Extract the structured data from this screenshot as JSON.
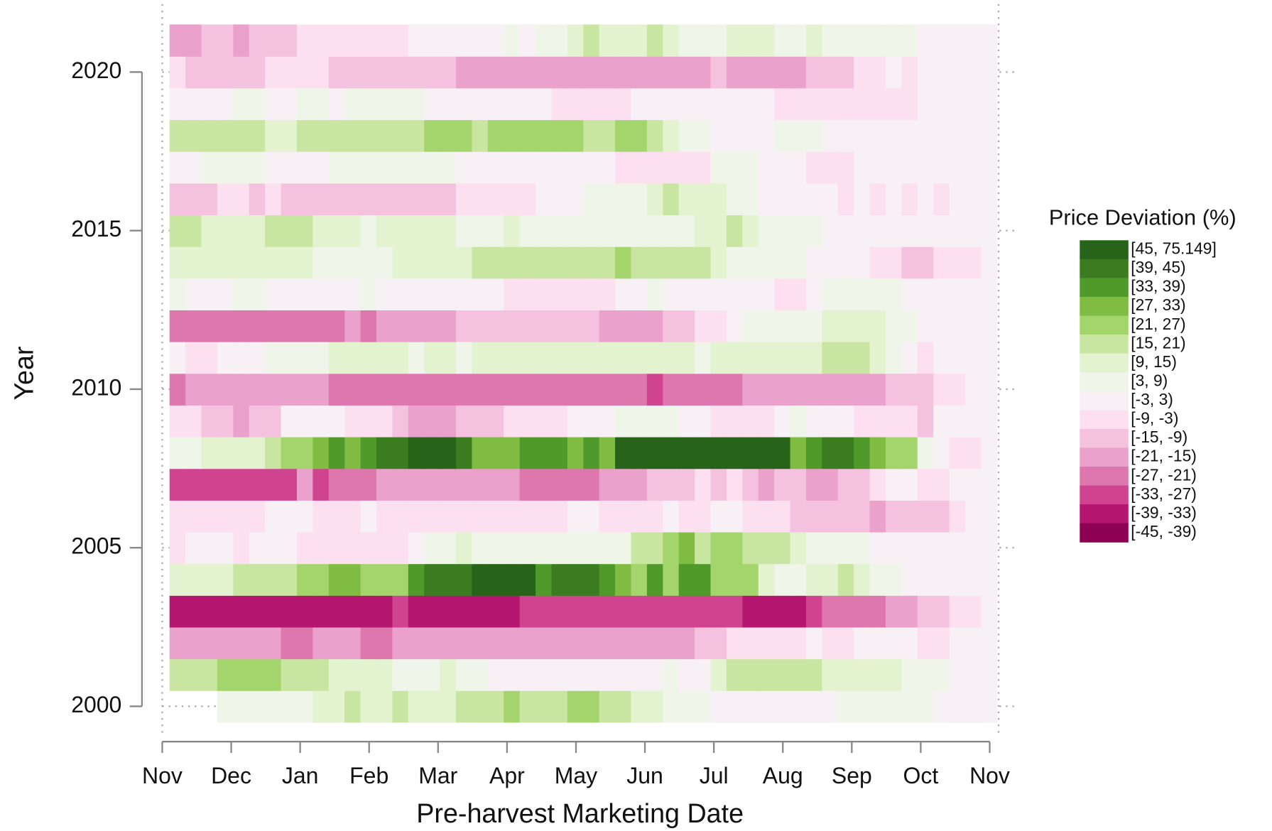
{
  "chart_data": {
    "type": "heatmap",
    "xlabel": "Pre-harvest Marketing Date",
    "ylabel": "Year",
    "xlim": [
      0,
      12
    ],
    "xticks": [
      {
        "value": 0,
        "label": "Nov"
      },
      {
        "value": 1,
        "label": "Dec"
      },
      {
        "value": 2,
        "label": "Jan"
      },
      {
        "value": 3,
        "label": "Feb"
      },
      {
        "value": 4,
        "label": "Mar"
      },
      {
        "value": 5,
        "label": "Apr"
      },
      {
        "value": 6,
        "label": "May"
      },
      {
        "value": 7,
        "label": "Jun"
      },
      {
        "value": 8,
        "label": "Jul"
      },
      {
        "value": 9,
        "label": "Aug"
      },
      {
        "value": 10,
        "label": "Sep"
      },
      {
        "value": 11,
        "label": "Oct"
      },
      {
        "value": 12,
        "label": "Nov"
      }
    ],
    "ylim": [
      1999.5,
      2021.5
    ],
    "yticks": [
      2000,
      2005,
      2010,
      2015,
      2020
    ],
    "grid": true,
    "y": [
      2000,
      2001,
      2002,
      2003,
      2004,
      2005,
      2006,
      2007,
      2008,
      2009,
      2010,
      2011,
      2012,
      2013,
      2014,
      2015,
      2016,
      2017,
      2018,
      2019,
      2020,
      2021
    ],
    "z": [
      [
        null,
        null,
        null,
        6,
        6,
        6,
        6,
        6,
        6,
        12,
        12,
        18,
        12,
        12,
        18,
        12,
        12,
        12,
        18,
        18,
        18,
        24,
        18,
        18,
        18,
        24,
        24,
        18,
        18,
        12,
        12,
        6,
        6,
        6,
        0,
        0,
        0,
        0,
        0,
        0,
        0,
        0,
        6,
        6,
        6,
        6,
        6,
        6,
        0,
        0,
        0,
        0
      ],
      [
        18,
        18,
        18,
        24,
        24,
        24,
        24,
        18,
        18,
        18,
        12,
        12,
        12,
        12,
        6,
        6,
        6,
        12,
        6,
        6,
        0,
        0,
        0,
        0,
        0,
        0,
        0,
        0,
        0,
        0,
        0,
        6,
        0,
        0,
        12,
        18,
        18,
        18,
        18,
        18,
        18,
        12,
        12,
        12,
        12,
        12,
        6,
        6,
        6,
        0,
        0,
        0
      ],
      [
        -18,
        -18,
        -18,
        -18,
        -18,
        -18,
        -18,
        -24,
        -24,
        -18,
        -18,
        -18,
        -24,
        -24,
        -18,
        -18,
        -18,
        -18,
        -18,
        -18,
        -18,
        -18,
        -18,
        -18,
        -18,
        -18,
        -18,
        -18,
        -18,
        -18,
        -18,
        -18,
        -18,
        -12,
        -12,
        -6,
        -6,
        -6,
        -6,
        -6,
        0,
        -6,
        -6,
        0,
        0,
        0,
        0,
        -6,
        -6,
        0,
        0,
        0
      ],
      [
        -36,
        -36,
        -36,
        -36,
        -36,
        -36,
        -36,
        -36,
        -36,
        -36,
        -36,
        -36,
        -36,
        -36,
        -30,
        -36,
        -36,
        -36,
        -36,
        -36,
        -36,
        -36,
        -30,
        -30,
        -30,
        -30,
        -30,
        -30,
        -30,
        -30,
        -30,
        -30,
        -30,
        -30,
        -30,
        -30,
        -36,
        -36,
        -36,
        -36,
        -30,
        -24,
        -24,
        -24,
        -24,
        -18,
        -18,
        -12,
        -12,
        -6,
        -6,
        0
      ],
      [
        12,
        12,
        12,
        12,
        18,
        18,
        18,
        18,
        24,
        24,
        30,
        30,
        24,
        24,
        24,
        36,
        42,
        42,
        42,
        50,
        50,
        50,
        50,
        36,
        42,
        42,
        42,
        36,
        30,
        24,
        36,
        24,
        36,
        36,
        24,
        24,
        24,
        12,
        6,
        6,
        12,
        12,
        18,
        12,
        6,
        6,
        0,
        0,
        0,
        0,
        0,
        0
      ],
      [
        -6,
        0,
        0,
        0,
        -6,
        0,
        0,
        0,
        -6,
        -6,
        -6,
        -6,
        -6,
        -6,
        -6,
        0,
        6,
        6,
        12,
        6,
        6,
        6,
        6,
        6,
        6,
        6,
        6,
        6,
        6,
        18,
        18,
        24,
        30,
        18,
        24,
        24,
        18,
        18,
        18,
        12,
        6,
        6,
        6,
        6,
        0,
        0,
        0,
        0,
        0,
        0,
        0,
        0
      ],
      [
        -6,
        -6,
        -6,
        -6,
        -6,
        -6,
        0,
        0,
        0,
        -6,
        -6,
        -6,
        0,
        -6,
        -6,
        -6,
        -6,
        -6,
        -6,
        -6,
        -6,
        -6,
        -6,
        -6,
        -6,
        0,
        0,
        -6,
        -6,
        -6,
        -6,
        0,
        -6,
        -6,
        0,
        0,
        -6,
        -6,
        -6,
        -12,
        -12,
        -12,
        -12,
        -12,
        -18,
        -12,
        -12,
        -12,
        -12,
        -6,
        0,
        0
      ],
      [
        -30,
        -30,
        -30,
        -30,
        -30,
        -30,
        -30,
        -30,
        -18,
        -30,
        -24,
        -24,
        -24,
        -18,
        -18,
        -18,
        -18,
        -18,
        -18,
        -18,
        -18,
        -18,
        -24,
        -24,
        -24,
        -24,
        -24,
        -18,
        -18,
        -18,
        -12,
        -12,
        -12,
        -6,
        -12,
        -6,
        -12,
        -18,
        -12,
        -12,
        -18,
        -18,
        -12,
        -12,
        -6,
        0,
        0,
        -6,
        -6,
        0,
        0,
        0
      ],
      [
        6,
        6,
        12,
        12,
        12,
        12,
        18,
        24,
        24,
        30,
        36,
        30,
        36,
        42,
        42,
        50,
        50,
        50,
        42,
        30,
        30,
        30,
        36,
        36,
        36,
        30,
        36,
        30,
        50,
        50,
        50,
        50,
        50,
        50,
        50,
        50,
        50,
        50,
        50,
        30,
        36,
        42,
        42,
        36,
        30,
        24,
        24,
        6,
        0,
        -6,
        -6,
        0
      ],
      [
        -6,
        -6,
        -12,
        -12,
        -18,
        -12,
        -12,
        0,
        0,
        0,
        0,
        -6,
        -6,
        -6,
        -12,
        -18,
        -18,
        -18,
        -12,
        -12,
        -12,
        -6,
        -6,
        -6,
        -6,
        0,
        0,
        0,
        6,
        6,
        6,
        6,
        0,
        0,
        -6,
        -6,
        -6,
        -6,
        0,
        6,
        0,
        0,
        0,
        -6,
        -6,
        -6,
        -6,
        -12,
        0,
        0,
        0,
        0
      ],
      [
        -24,
        -18,
        -18,
        -18,
        -18,
        -18,
        -18,
        -18,
        -18,
        -18,
        -24,
        -24,
        -24,
        -24,
        -24,
        -24,
        -24,
        -24,
        -24,
        -24,
        -24,
        -24,
        -24,
        -24,
        -24,
        -24,
        -24,
        -24,
        -24,
        -24,
        -30,
        -24,
        -24,
        -24,
        -24,
        -24,
        -18,
        -18,
        -18,
        -18,
        -18,
        -18,
        -18,
        -18,
        -18,
        -12,
        -12,
        -12,
        -6,
        -6,
        0,
        0
      ],
      [
        0,
        -6,
        -6,
        0,
        0,
        0,
        6,
        6,
        6,
        6,
        12,
        12,
        12,
        12,
        12,
        6,
        12,
        12,
        6,
        12,
        12,
        12,
        12,
        12,
        12,
        12,
        12,
        12,
        12,
        12,
        12,
        12,
        12,
        6,
        12,
        12,
        12,
        12,
        12,
        12,
        12,
        18,
        18,
        18,
        12,
        6,
        0,
        -6,
        0,
        0,
        0,
        0
      ],
      [
        -24,
        -24,
        -24,
        -24,
        -24,
        -24,
        -24,
        -24,
        -24,
        -24,
        -24,
        -18,
        -24,
        -18,
        -18,
        -18,
        -18,
        -18,
        -12,
        -12,
        -12,
        -12,
        -12,
        -12,
        -12,
        -12,
        -12,
        -18,
        -18,
        -18,
        -18,
        -12,
        -12,
        -6,
        -6,
        0,
        6,
        6,
        6,
        6,
        6,
        12,
        12,
        12,
        12,
        6,
        6,
        0,
        0,
        0,
        0,
        0
      ],
      [
        6,
        0,
        0,
        0,
        6,
        6,
        0,
        0,
        0,
        0,
        0,
        0,
        6,
        0,
        0,
        0,
        0,
        0,
        0,
        0,
        0,
        -6,
        -6,
        -6,
        -6,
        -6,
        -6,
        -6,
        0,
        0,
        6,
        0,
        0,
        0,
        0,
        0,
        0,
        0,
        -6,
        -6,
        0,
        6,
        6,
        6,
        6,
        6,
        0,
        0,
        0,
        0,
        0,
        0
      ],
      [
        12,
        12,
        12,
        12,
        12,
        12,
        12,
        12,
        12,
        6,
        6,
        6,
        6,
        6,
        12,
        12,
        12,
        12,
        12,
        18,
        18,
        18,
        18,
        18,
        18,
        18,
        18,
        18,
        24,
        18,
        18,
        18,
        18,
        18,
        12,
        6,
        6,
        6,
        6,
        6,
        0,
        0,
        0,
        0,
        -6,
        -6,
        -12,
        -12,
        -6,
        -6,
        -6,
        0
      ],
      [
        18,
        18,
        12,
        12,
        12,
        12,
        18,
        18,
        18,
        12,
        12,
        12,
        6,
        12,
        12,
        12,
        12,
        12,
        6,
        6,
        6,
        12,
        6,
        6,
        6,
        6,
        6,
        6,
        6,
        6,
        6,
        6,
        6,
        12,
        12,
        18,
        12,
        6,
        6,
        6,
        6,
        0,
        0,
        0,
        0,
        0,
        0,
        0,
        0,
        0,
        0,
        0
      ],
      [
        -12,
        -12,
        -12,
        -6,
        -6,
        -12,
        -6,
        -12,
        -12,
        -12,
        -12,
        -12,
        -12,
        -12,
        -12,
        -12,
        -12,
        -12,
        -6,
        -6,
        -6,
        -6,
        -6,
        0,
        0,
        0,
        6,
        6,
        6,
        6,
        12,
        18,
        12,
        12,
        12,
        6,
        6,
        0,
        0,
        0,
        0,
        0,
        -6,
        0,
        -6,
        0,
        -6,
        0,
        -6,
        0,
        0,
        0
      ],
      [
        0,
        0,
        6,
        6,
        6,
        6,
        0,
        0,
        0,
        0,
        6,
        6,
        6,
        6,
        6,
        6,
        6,
        6,
        0,
        0,
        0,
        0,
        0,
        0,
        0,
        0,
        0,
        0,
        -6,
        -6,
        -6,
        -6,
        -6,
        -6,
        6,
        6,
        6,
        0,
        0,
        0,
        -6,
        -6,
        -6,
        0,
        0,
        0,
        0,
        0,
        0,
        0,
        0,
        0
      ],
      [
        18,
        18,
        18,
        18,
        18,
        18,
        12,
        12,
        18,
        18,
        18,
        18,
        18,
        18,
        18,
        18,
        24,
        24,
        24,
        18,
        24,
        24,
        24,
        24,
        24,
        24,
        18,
        18,
        24,
        24,
        18,
        12,
        6,
        6,
        0,
        0,
        0,
        0,
        6,
        6,
        6,
        0,
        0,
        0,
        0,
        0,
        0,
        0,
        0,
        0,
        0,
        0
      ],
      [
        0,
        0,
        0,
        0,
        6,
        6,
        0,
        0,
        6,
        6,
        0,
        6,
        6,
        6,
        6,
        6,
        0,
        0,
        0,
        0,
        0,
        0,
        0,
        0,
        -6,
        -6,
        -6,
        -6,
        -6,
        0,
        0,
        0,
        0,
        0,
        0,
        0,
        0,
        0,
        -6,
        -6,
        -6,
        -6,
        -6,
        -6,
        -6,
        -6,
        -6,
        0,
        0,
        0,
        0,
        0
      ],
      [
        -6,
        -12,
        -12,
        -12,
        -12,
        -12,
        -6,
        -6,
        -6,
        -6,
        -12,
        -12,
        -12,
        -12,
        -12,
        -12,
        -12,
        -12,
        -18,
        -18,
        -18,
        -18,
        -18,
        -18,
        -18,
        -18,
        -18,
        -18,
        -18,
        -18,
        -18,
        -18,
        -18,
        -18,
        -12,
        -18,
        -18,
        -18,
        -18,
        -18,
        -12,
        -12,
        -12,
        -6,
        -6,
        0,
        -6,
        0,
        0,
        0,
        0,
        0
      ],
      [
        -18,
        -18,
        -12,
        -12,
        -18,
        -12,
        -12,
        -12,
        -6,
        -6,
        -6,
        -6,
        -6,
        -6,
        -6,
        0,
        0,
        0,
        0,
        0,
        0,
        6,
        0,
        6,
        6,
        12,
        18,
        12,
        12,
        12,
        18,
        12,
        6,
        6,
        6,
        12,
        12,
        12,
        6,
        6,
        12,
        6,
        6,
        6,
        6,
        6,
        6,
        0,
        0,
        0,
        0,
        0
      ]
    ],
    "legend": {
      "title": "Price Deviation (%)",
      "bins": [
        {
          "label": "[45, 75.149]",
          "range": [
            45,
            75.149
          ],
          "color": "#276419"
        },
        {
          "label": "[39, 45)",
          "range": [
            39,
            45
          ],
          "color": "#3a7c1f"
        },
        {
          "label": "[33, 39)",
          "range": [
            33,
            39
          ],
          "color": "#4f9a2a"
        },
        {
          "label": "[27, 33)",
          "range": [
            27,
            33
          ],
          "color": "#7fbc41"
        },
        {
          "label": "[21, 27)",
          "range": [
            21,
            27
          ],
          "color": "#a4d46c"
        },
        {
          "label": "[15, 21)",
          "range": [
            15,
            21
          ],
          "color": "#c8e6a2"
        },
        {
          "label": "[9, 15)",
          "range": [
            9,
            15
          ],
          "color": "#e3f3cf"
        },
        {
          "label": "[3, 9)",
          "range": [
            3,
            9
          ],
          "color": "#eff5e8"
        },
        {
          "label": "[-3, 3)",
          "range": [
            -3,
            3
          ],
          "color": "#f7f0f4"
        },
        {
          "label": "[-9, -3)",
          "range": [
            -9,
            -3
          ],
          "color": "#fde0ef"
        },
        {
          "label": "[-15, -9)",
          "range": [
            -15,
            -9
          ],
          "color": "#f4c2de"
        },
        {
          "label": "[-21, -15)",
          "range": [
            -21,
            -15
          ],
          "color": "#eaa1cb"
        },
        {
          "label": "[-27, -21)",
          "range": [
            -27,
            -21
          ],
          "color": "#de77ae"
        },
        {
          "label": "[-33, -27)",
          "range": [
            -33,
            -27
          ],
          "color": "#d0438f"
        },
        {
          "label": "[-39, -33)",
          "range": [
            -39,
            -33
          ],
          "color": "#b5166f"
        },
        {
          "label": "[-45, -39)",
          "range": [
            -45,
            -39
          ],
          "color": "#8e0152"
        }
      ]
    }
  }
}
